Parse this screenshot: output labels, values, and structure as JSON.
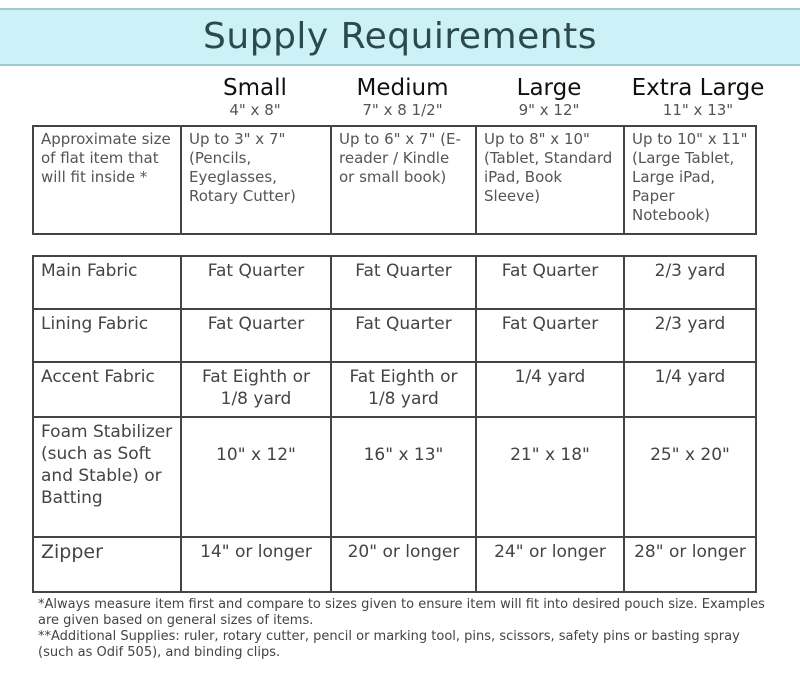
{
  "title": "Supply Requirements",
  "sizes": [
    {
      "name": "Small",
      "dims": "4\" x 8\""
    },
    {
      "name": "Medium",
      "dims": "7\" x 8 1/2\""
    },
    {
      "name": "Large",
      "dims": "9\" x 12\""
    },
    {
      "name": "Extra Large",
      "dims": "11\" x 13\""
    }
  ],
  "fit_row": {
    "label": "Approximate size of flat item that will fit inside *",
    "values": [
      "Up to 3\" x 7\" (Pencils, Eyeglasses, Rotary Cutter)",
      "Up to 6\" x 7\" (E-reader / Kindle or small book)",
      "Up to 8\" x 10\" (Tablet, Standard iPad, Book Sleeve)",
      "Up to 10\" x 11\" (Large Tablet, Large iPad, Paper Notebook)"
    ]
  },
  "rows": [
    {
      "label": "Main Fabric",
      "values": [
        "Fat Quarter",
        "Fat Quarter",
        "Fat Quarter",
        "2/3 yard"
      ]
    },
    {
      "label": "Lining Fabric",
      "values": [
        "Fat Quarter",
        "Fat Quarter",
        "Fat Quarter",
        "2/3 yard"
      ]
    },
    {
      "label": "Accent Fabric",
      "values": [
        "Fat Eighth or 1/8 yard",
        "Fat Eighth or 1/8 yard",
        "1/4 yard",
        "1/4 yard"
      ]
    },
    {
      "label": "Foam Stabilizer (such as Soft and Stable) or Batting",
      "values": [
        "10\" x 12\"",
        "16\" x 13\"",
        "21\" x 18\"",
        "25\" x 20\""
      ]
    },
    {
      "label": "Zipper",
      "values": [
        "14\" or longer",
        "20\" or longer",
        "24\" or longer",
        "28\" or longer"
      ]
    }
  ],
  "notes": [
    "*Always measure item first and compare to sizes given to ensure item will fit into desired pouch size. Examples are given based on general sizes of items.",
    "**Additional Supplies: ruler, rotary cutter, pencil or marking tool, pins, scissors, safety pins or basting spray (such as Odif 505), and binding clips."
  ],
  "colors": {
    "banner": "#ccf1f6"
  }
}
